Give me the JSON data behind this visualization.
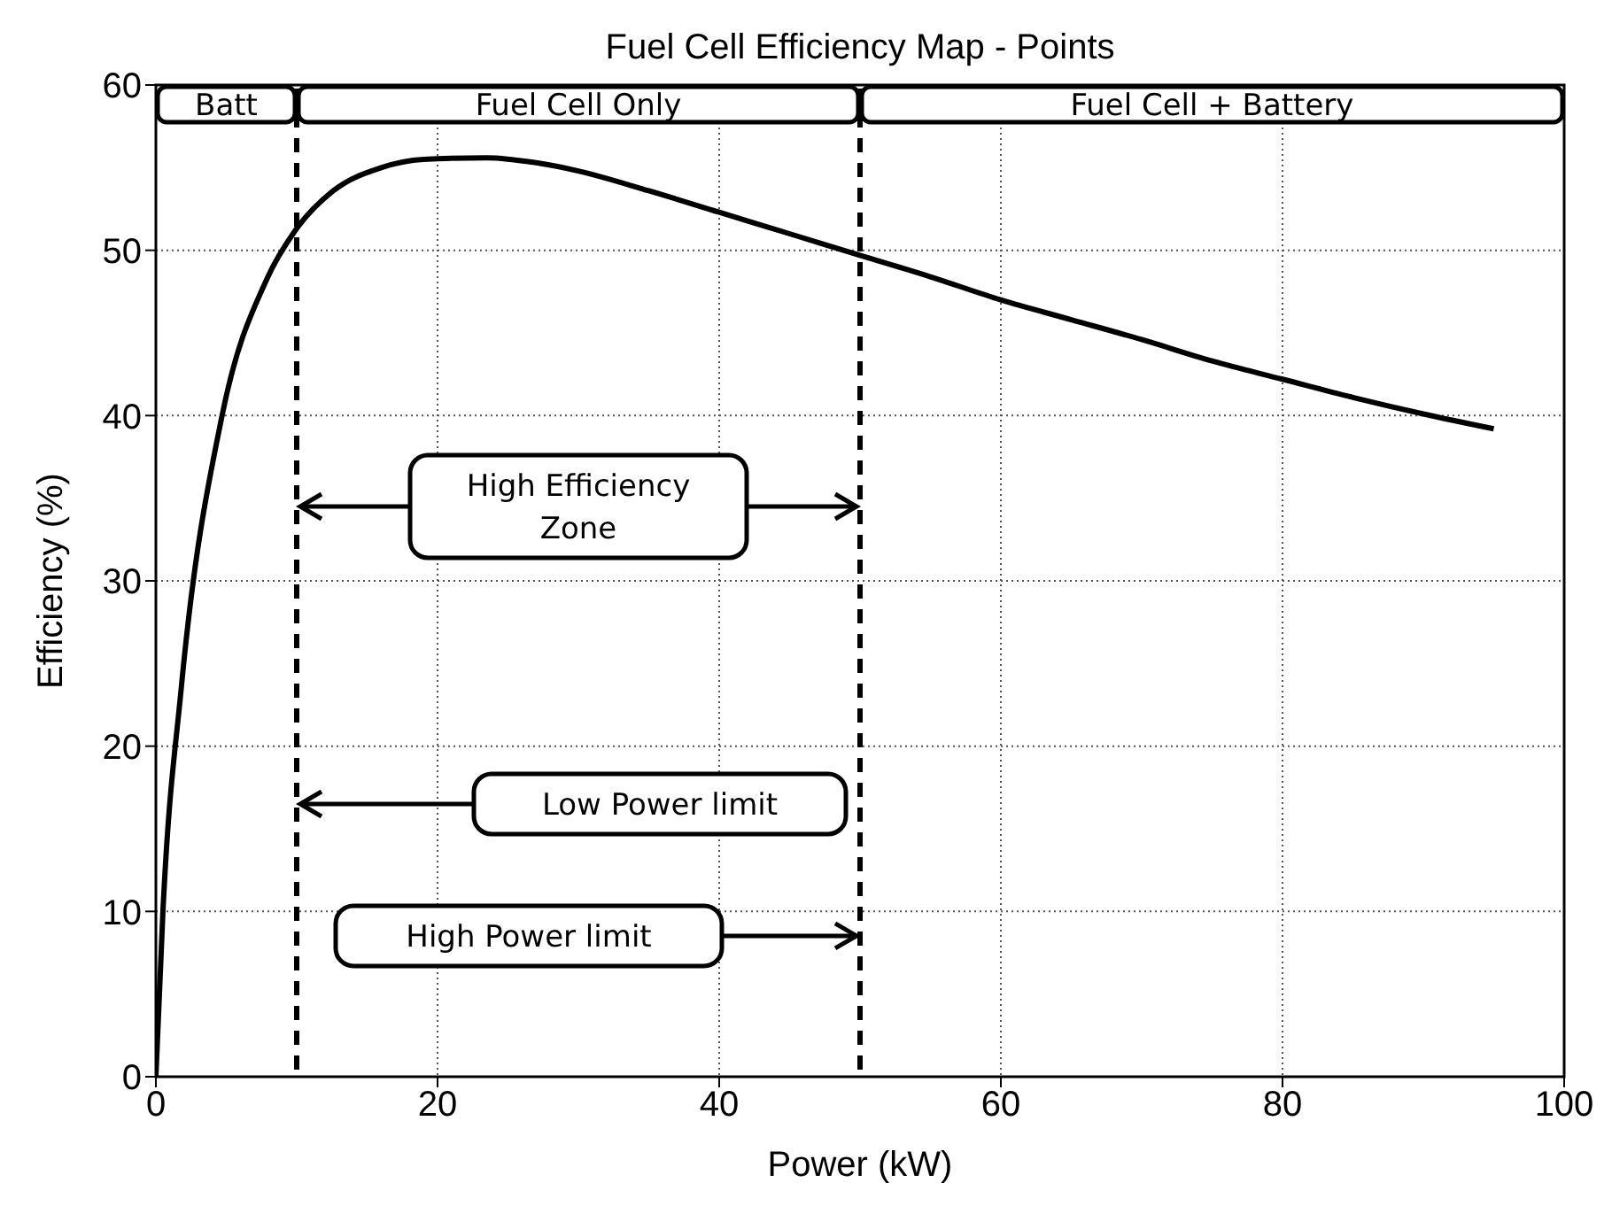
{
  "chart_data": {
    "type": "line",
    "title": "Fuel Cell Efficiency Map - Points",
    "xlabel": "Power (kW)",
    "ylabel": "Efficiency (%)",
    "x": [
      0,
      0.5,
      1.8,
      4.7,
      7.9,
      9.9,
      12.6,
      16,
      19,
      23.5,
      27,
      30,
      35,
      40,
      45,
      50,
      55,
      60,
      65,
      70,
      75,
      80,
      85,
      90,
      95
    ],
    "series": [
      {
        "color": "#000000",
        "values": [
          0,
          10,
          23.5,
          40,
          48.3,
          51.2,
          53.6,
          55,
          55.5,
          55.6,
          55.3,
          54.8,
          53.6,
          52.3,
          51,
          49.7,
          48.4,
          47,
          45.8,
          44.6,
          43.3,
          42.2,
          41.1,
          40.1,
          39.2
        ]
      }
    ],
    "xlim": [
      0,
      100
    ],
    "ylim": [
      0,
      60
    ],
    "xticks": [
      0,
      20,
      40,
      60,
      80,
      100
    ],
    "yticks": [
      0,
      10,
      20,
      30,
      40,
      50,
      60
    ],
    "grid": true,
    "marker": "none",
    "line_style": "solid",
    "ref_lines": [
      {
        "axis": "x",
        "value": 10,
        "line_style": "dashed",
        "color": "#000000"
      },
      {
        "axis": "x",
        "value": 50,
        "line_style": "dashed",
        "color": "#000000"
      }
    ],
    "annotations": [
      "Batt",
      "Fuel Cell Only",
      "Fuel Cell + Battery",
      "High Efficiency Zone",
      "Low Power limit",
      "High Power limit"
    ]
  }
}
